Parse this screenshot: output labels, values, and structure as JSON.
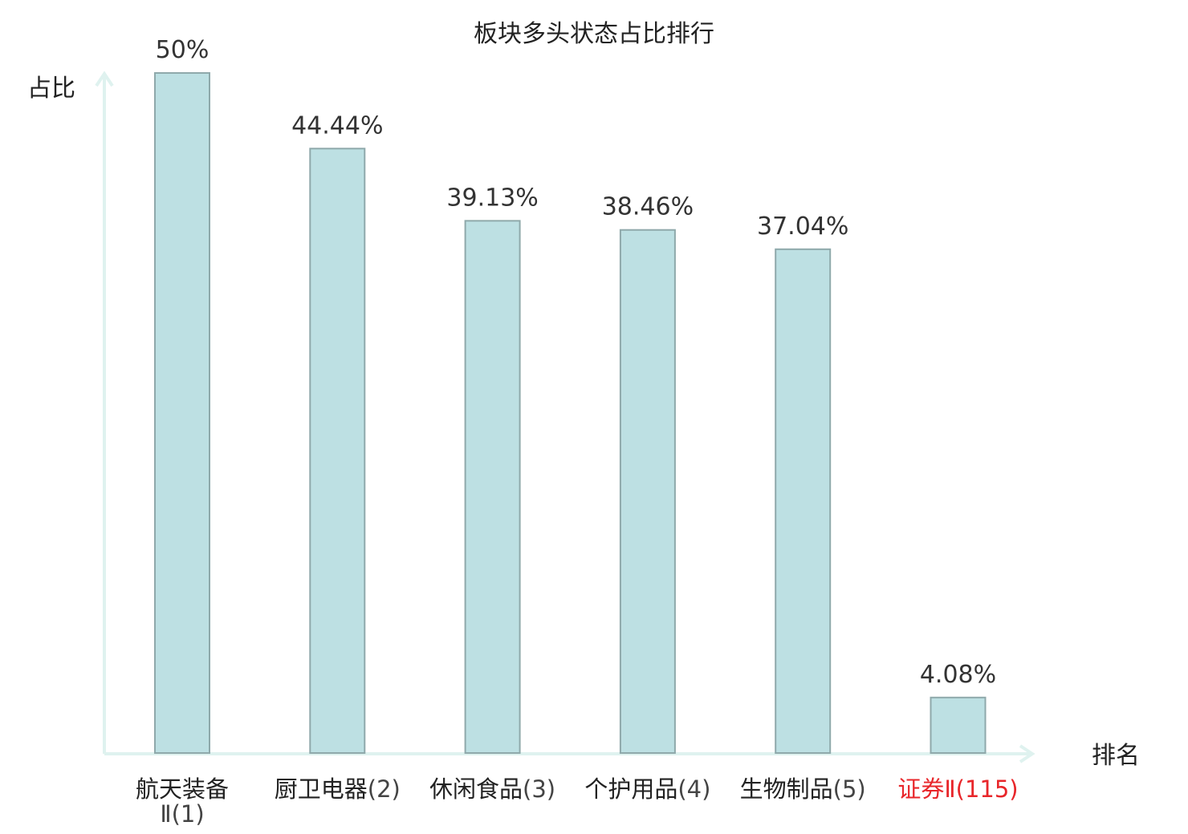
{
  "chart_data": {
    "type": "bar",
    "title": "板块多头状态占比排行",
    "ylabel": "占比",
    "xlabel": "排名",
    "categories": [
      {
        "name": "航天装备Ⅱ",
        "rank": "(1)",
        "highlight": false
      },
      {
        "name": "厨卫电器",
        "rank": "(2)",
        "highlight": false
      },
      {
        "name": "休闲食品",
        "rank": "(3)",
        "highlight": false
      },
      {
        "name": "个护用品",
        "rank": "(4)",
        "highlight": false
      },
      {
        "name": "生物制品",
        "rank": "(5)",
        "highlight": false
      },
      {
        "name": "证券Ⅱ",
        "rank": "(115)",
        "highlight": true
      }
    ],
    "values": [
      50,
      44.44,
      39.13,
      38.46,
      37.04,
      4.08
    ],
    "value_labels": [
      "50%",
      "44.44%",
      "39.13%",
      "38.46%",
      "37.04%",
      "4.08%"
    ],
    "unit": "%",
    "ylim": [
      0,
      50
    ],
    "grid": false,
    "colors": {
      "bar_fill": "#bde0e3",
      "bar_stroke": "#8fa9ab",
      "axis": "#dff2ef",
      "highlight": "#e8262a"
    }
  }
}
